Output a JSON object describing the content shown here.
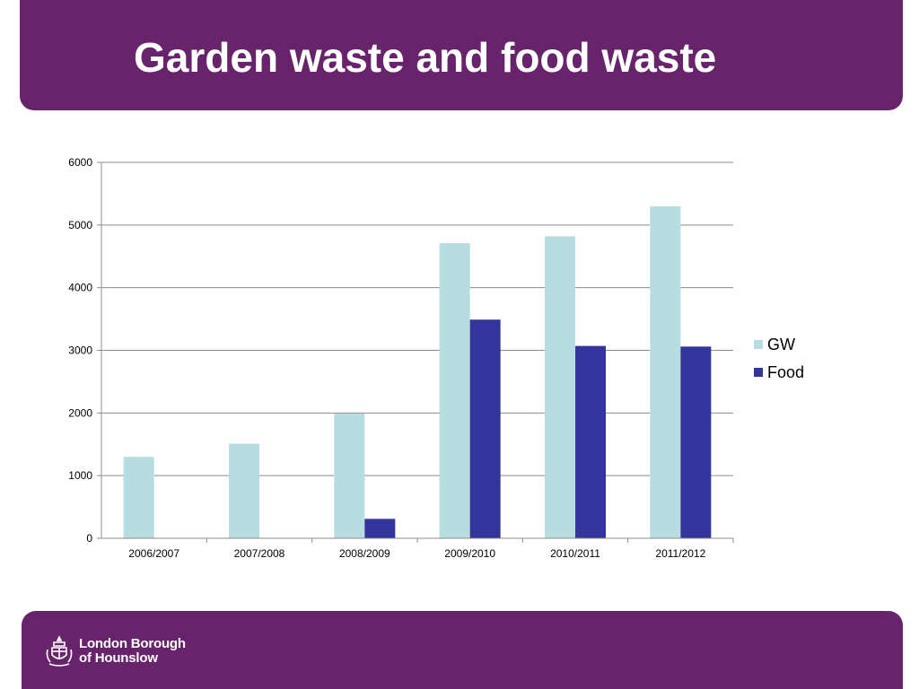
{
  "slide": {
    "title": "Garden waste and food waste",
    "header_color": "#68246a",
    "footer_color": "#68246a"
  },
  "footer": {
    "logo_line1": "London Borough",
    "logo_line2": "of Hounslow",
    "logo_icon": "borough-crest-icon"
  },
  "chart_data": {
    "type": "bar",
    "categories": [
      "2006/2007",
      "2007/2008",
      "2008/2009",
      "2009/2010",
      "2010/2011",
      "2011/2012"
    ],
    "series": [
      {
        "name": "GW",
        "color": "#b7dde0",
        "values": [
          1300,
          1510,
          1990,
          4710,
          4820,
          5300
        ]
      },
      {
        "name": "Food",
        "color": "#34359c",
        "values": [
          0,
          0,
          310,
          3490,
          3070,
          3060
        ]
      }
    ],
    "ylim": [
      0,
      6000
    ],
    "yticks": [
      0,
      1000,
      2000,
      3000,
      4000,
      5000,
      6000
    ],
    "grid": true,
    "legend_position": "right"
  }
}
